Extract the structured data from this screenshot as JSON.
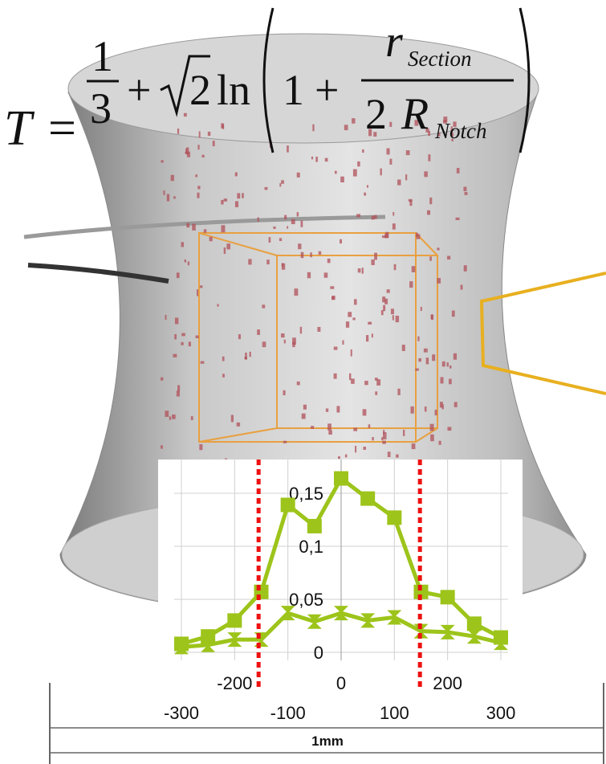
{
  "formula": {
    "lhs": "T",
    "eq": "=",
    "num1": "1",
    "den1": "3",
    "plus1": "+",
    "root": "2",
    "ln": "ln",
    "one": "1",
    "plus2": "+",
    "r": "r",
    "r_sub": "Section",
    "two": "2",
    "R": "R",
    "R_sub": "Notch"
  },
  "scale_bar": "1mm",
  "chart_data": {
    "type": "line",
    "x": [
      -300,
      -250,
      -200,
      -150,
      -100,
      -50,
      0,
      50,
      100,
      150,
      200,
      250,
      300
    ],
    "series": [
      {
        "color": "#9dc41a",
        "marker": "square",
        "values": [
          0.008,
          0.015,
          0.03,
          0.057,
          0.139,
          0.119,
          0.164,
          0.145,
          0.127,
          0.057,
          0.052,
          0.027,
          0.014
        ]
      },
      {
        "color": "#9dc41a",
        "marker": "triangle",
        "values": [
          0.005,
          0.007,
          0.012,
          0.012,
          0.037,
          0.029,
          0.037,
          0.03,
          0.033,
          0.02,
          0.019,
          0.015,
          0.009
        ]
      }
    ],
    "xlim": [
      -300,
      300
    ],
    "ylim": [
      0,
      0.18
    ],
    "xticks": [
      -300,
      -200,
      -100,
      0,
      100,
      200,
      300
    ],
    "yticks": [
      0,
      {
        "value": 0.05,
        "label": "0,05"
      },
      {
        "value": 0.1,
        "label": "0,1"
      },
      {
        "value": 0.15,
        "label": "0,15"
      }
    ],
    "grid": true,
    "vlines": [
      -155,
      148
    ],
    "vline_color": "#ee1111"
  }
}
